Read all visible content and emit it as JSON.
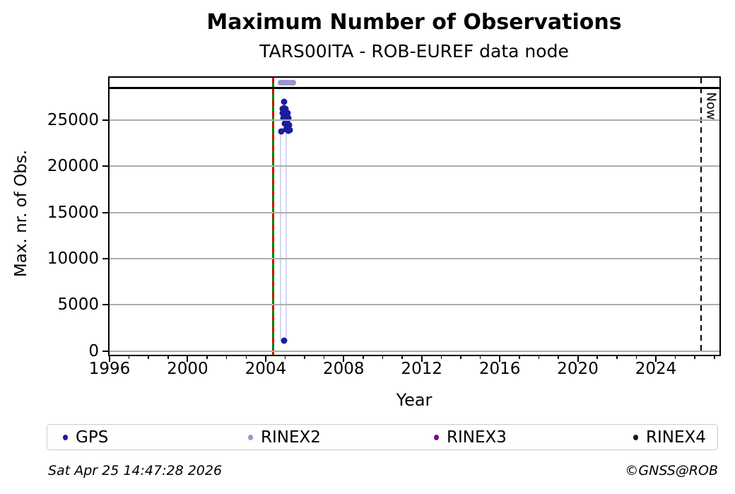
{
  "chart_data": {
    "type": "scatter",
    "title": "Maximum Number of Observations",
    "subtitle": "TARS00ITA - ROB-EUREF data node",
    "xlabel": "Year",
    "ylabel": "Max. nr. of Obs.",
    "xlim": [
      1996,
      2027.26
    ],
    "ylim": [
      -400,
      29600
    ],
    "xticks": [
      1996,
      2000,
      2004,
      2008,
      2012,
      2016,
      2020,
      2024
    ],
    "minor_xtick_step_years": 1,
    "yticks": [
      0,
      5000,
      10000,
      15000,
      20000,
      25000
    ],
    "grid": "horizontal-major-only",
    "legend_position": "bottom-outside",
    "series": [
      {
        "name": "GPS",
        "color": "#1c1c9e",
        "marker_px": 9,
        "points": [
          [
            2004.96,
            27000
          ],
          [
            2004.88,
            26250
          ],
          [
            2004.96,
            26300
          ],
          [
            2005.03,
            26200
          ],
          [
            2004.86,
            25780
          ],
          [
            2004.93,
            25850
          ],
          [
            2005.0,
            25800
          ],
          [
            2005.07,
            25720
          ],
          [
            2005.14,
            25760
          ],
          [
            2004.9,
            25240
          ],
          [
            2004.97,
            25130
          ],
          [
            2005.04,
            25210
          ],
          [
            2005.11,
            25080
          ],
          [
            2005.18,
            25230
          ],
          [
            2004.99,
            24640
          ],
          [
            2005.06,
            24540
          ],
          [
            2005.13,
            24600
          ],
          [
            2005.2,
            24460
          ],
          [
            2004.81,
            23800
          ],
          [
            2005.04,
            24030
          ],
          [
            2005.11,
            23930
          ],
          [
            2005.17,
            23840
          ],
          [
            2005.24,
            23900
          ],
          [
            2004.93,
            1100
          ]
        ]
      },
      {
        "name": "RINEX2",
        "color": "#9896cc",
        "marker_px": 8,
        "points": [
          [
            2004.78,
            29050
          ],
          [
            2004.86,
            29100
          ],
          [
            2004.94,
            29050
          ],
          [
            2005.02,
            29100
          ],
          [
            2005.1,
            29050
          ],
          [
            2005.18,
            29100
          ],
          [
            2005.26,
            29050
          ],
          [
            2005.34,
            29030
          ],
          [
            2005.42,
            29050
          ]
        ]
      },
      {
        "name": "RINEX3",
        "color": "#7c0f7c",
        "marker_px": 9,
        "points": []
      },
      {
        "name": "RINEX4",
        "color": "#261024",
        "marker_px": 9,
        "points": []
      }
    ],
    "annotations": {
      "start_line": {
        "x": 2004.38,
        "color_solid": "#008000",
        "color_dash": "#d40000"
      },
      "now_line": {
        "x": 2026.32,
        "label": "Now",
        "color": "#000000",
        "style": "dashed"
      },
      "max_hline": {
        "y": 28500,
        "color": "#000000"
      },
      "drop_lines": [
        {
          "x": 2004.78,
          "y_top": 24000,
          "y_bottom": 1100
        },
        {
          "x": 2005.07,
          "y_top": 26100,
          "y_bottom": 1100
        }
      ]
    }
  },
  "footer": {
    "timestamp": "Sat Apr 25 14:47:28 2026",
    "copyright": "©GNSS@ROB"
  }
}
